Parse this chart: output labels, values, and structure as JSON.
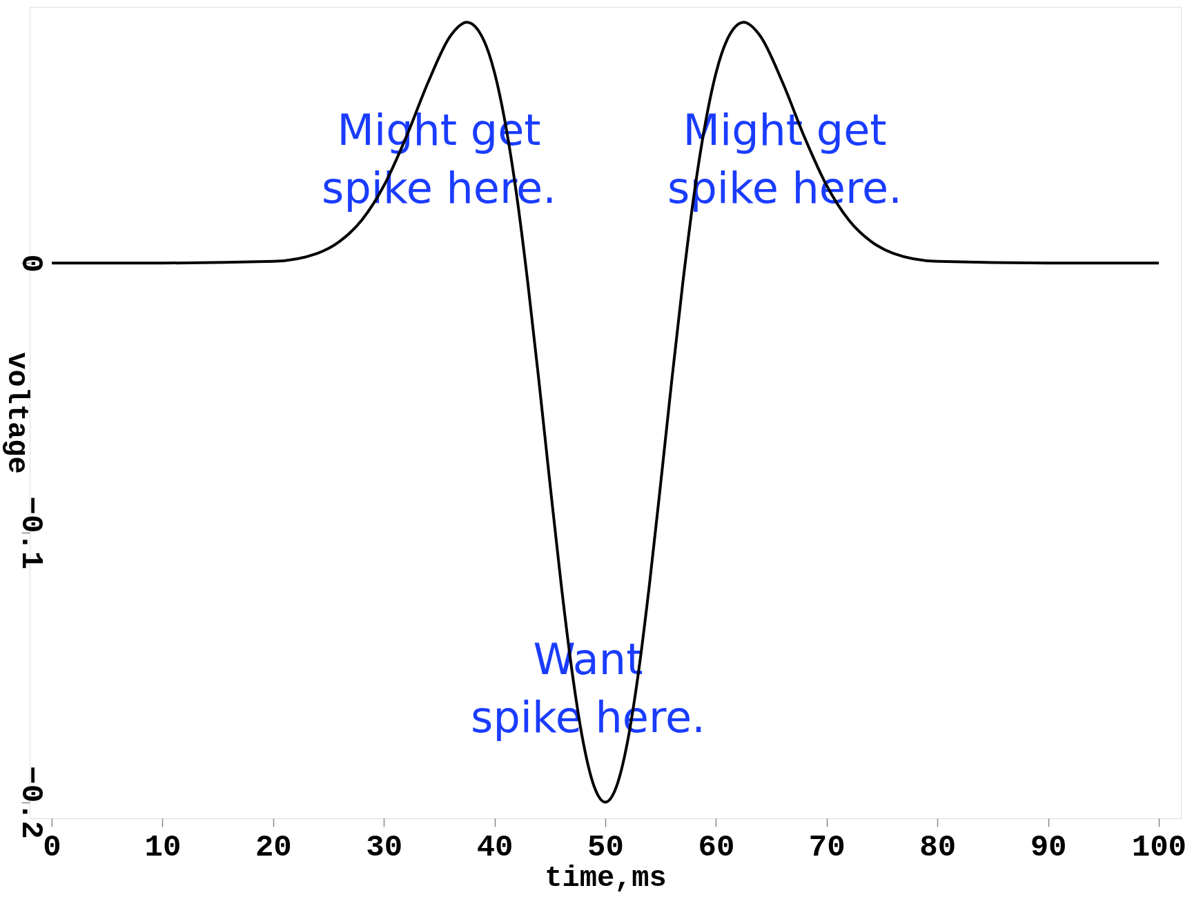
{
  "chart_data": {
    "type": "line",
    "xlabel": "time,ms",
    "ylabel": "voltage",
    "x": [
      0,
      10,
      20,
      24,
      26,
      28,
      30,
      32,
      34,
      36,
      37.5,
      39,
      40,
      41,
      42,
      43,
      44,
      45,
      46,
      47,
      48,
      49,
      50,
      51,
      52,
      53,
      54,
      55,
      56,
      57,
      58,
      59,
      60,
      61,
      62.5,
      64,
      66,
      68,
      70,
      72,
      74,
      76,
      80,
      90,
      100
    ],
    "series": [
      {
        "color": "#000000",
        "values": [
          0,
          0,
          0.0006,
          0.0036,
          0.008,
          0.0159,
          0.0287,
          0.0466,
          0.0671,
          0.0842,
          0.0893,
          0.0828,
          0.0705,
          0.051,
          0.0249,
          -0.0074,
          -0.0437,
          -0.0818,
          -0.1188,
          -0.1517,
          -0.1777,
          -0.1943,
          -0.2,
          -0.1943,
          -0.1777,
          -0.1517,
          -0.1188,
          -0.0818,
          -0.0437,
          -0.0074,
          0.0249,
          0.051,
          0.0705,
          0.0828,
          0.0893,
          0.0842,
          0.0671,
          0.0466,
          0.0287,
          0.0159,
          0.008,
          0.0036,
          0.0006,
          0,
          0
        ]
      }
    ],
    "xlim": [
      -2,
      102
    ],
    "ylim": [
      -0.206,
      0.095
    ],
    "xticks": [
      0,
      10,
      20,
      30,
      40,
      50,
      60,
      70,
      80,
      90,
      100
    ],
    "yticks": [
      -0.2,
      -0.1,
      0
    ],
    "grid": false,
    "marker": "none",
    "line_style": "solid",
    "annotations": [
      "Might get\nspike here.",
      "Might get\nspike here.",
      "Want\nspike here."
    ]
  }
}
